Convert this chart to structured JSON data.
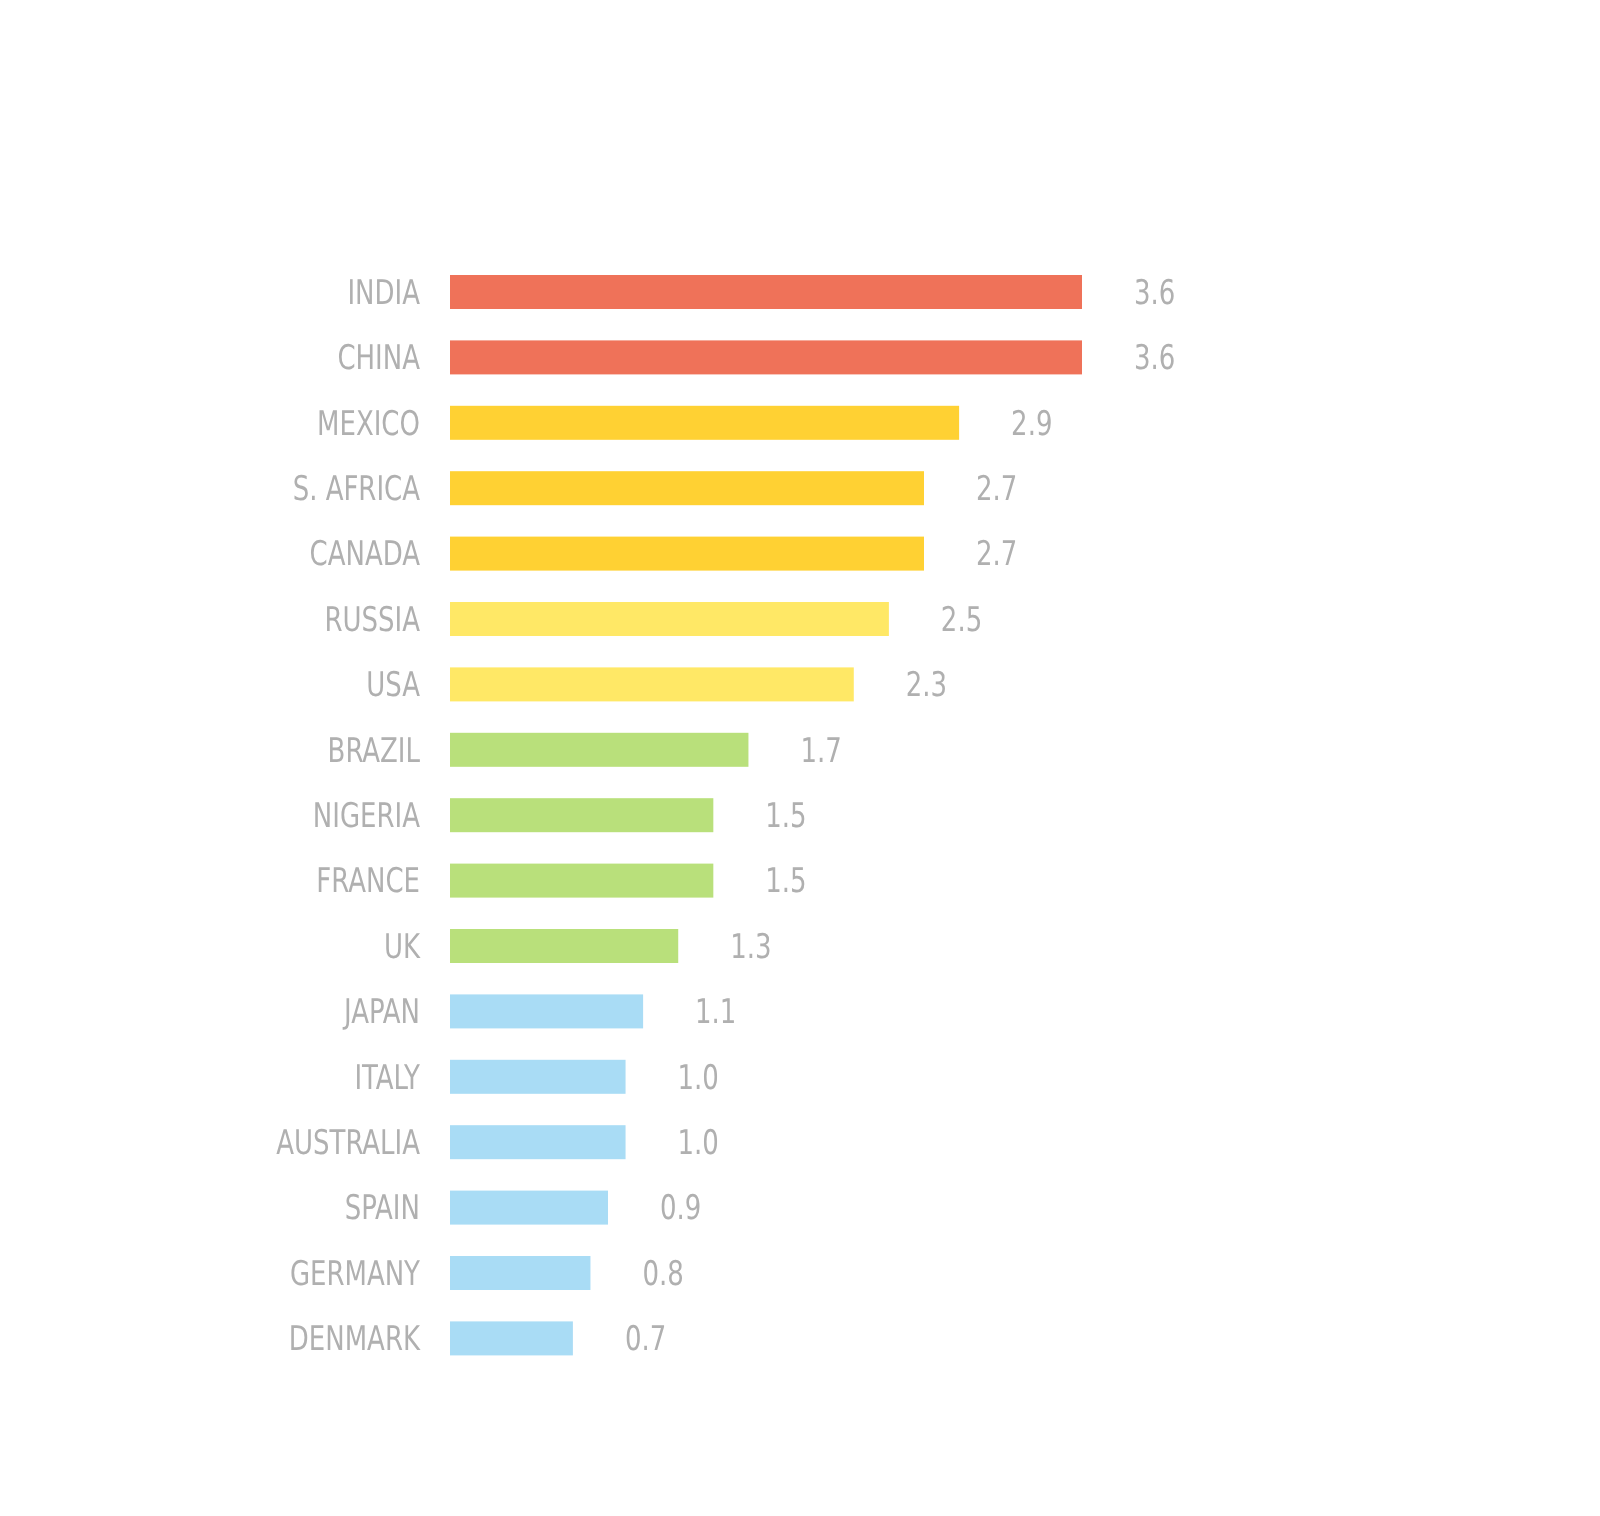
{
  "chart_data": {
    "type": "bar",
    "orientation": "horizontal",
    "categories": [
      "INDIA",
      "CHINA",
      "MEXICO",
      "S. AFRICA",
      "CANADA",
      "RUSSIA",
      "USA",
      "BRAZIL",
      "NIGERIA",
      "FRANCE",
      "UK",
      "JAPAN",
      "ITALY",
      "AUSTRALIA",
      "SPAIN",
      "GERMANY",
      "DENMARK"
    ],
    "values": [
      3.6,
      3.6,
      2.9,
      2.7,
      2.7,
      2.5,
      2.3,
      1.7,
      1.5,
      1.5,
      1.3,
      1.1,
      1.0,
      1.0,
      0.9,
      0.8,
      0.7
    ],
    "colors": [
      "#ef7259",
      "#ef7259",
      "#ffd133",
      "#ffd133",
      "#ffd133",
      "#ffe866",
      "#ffe866",
      "#b9e07b",
      "#b9e07b",
      "#b9e07b",
      "#b9e07b",
      "#a9dcf5",
      "#a9dcf5",
      "#a9dcf5",
      "#a9dcf5",
      "#a9dcf5",
      "#a9dcf5"
    ],
    "value_labels": [
      "3.6",
      "3.6",
      "2.9",
      "2.7",
      "2.7",
      "2.5",
      "2.3",
      "1.7",
      "1.5",
      "1.5",
      "1.3",
      "1.1",
      "1.0",
      "1.0",
      "0.9",
      "0.8",
      "0.7"
    ],
    "data_labels": true
  }
}
